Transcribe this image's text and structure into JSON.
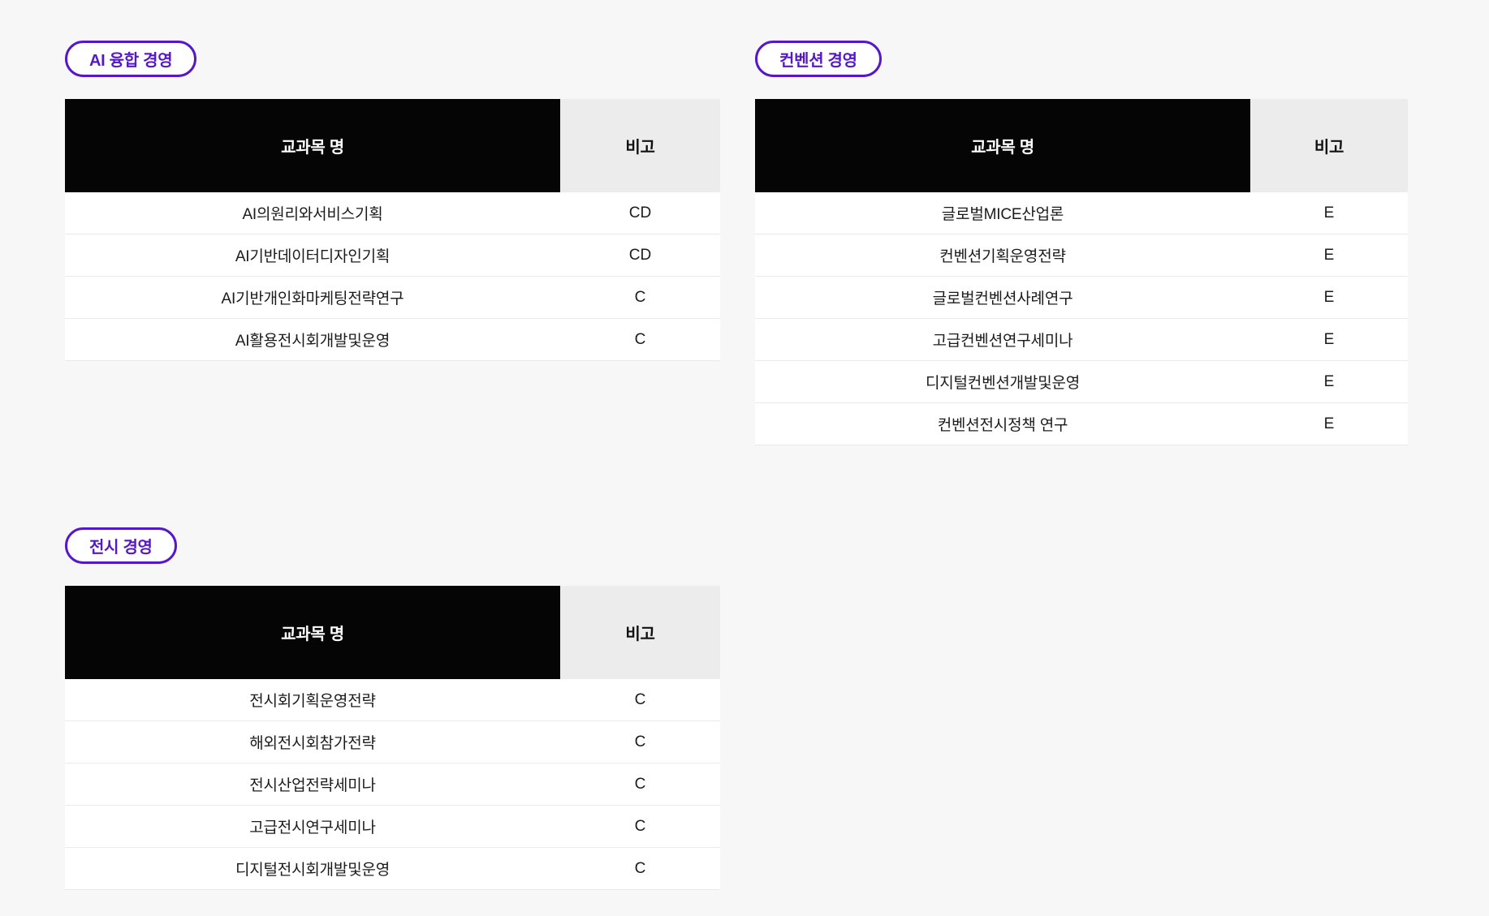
{
  "theme": {
    "accent": "#5617C9",
    "page_bg": "#F7F7F8",
    "header_bg": "#050505",
    "header_text": "#FFFFFF",
    "subheader_bg": "#ECECEC",
    "row_border": "#E9E9EB"
  },
  "columns": {
    "course": "교과목 명",
    "note": "비고"
  },
  "sections": [
    {
      "badge": "AI 융합 경영",
      "rows": [
        {
          "course": "AI의원리와서비스기획",
          "note": "CD"
        },
        {
          "course": "AI기반데이터디자인기획",
          "note": "CD"
        },
        {
          "course": "AI기반개인화마케팅전략연구",
          "note": "C"
        },
        {
          "course": "AI활용전시회개발및운영",
          "note": "C"
        }
      ]
    },
    {
      "badge": "컨벤션 경영",
      "rows": [
        {
          "course": "글로벌MICE산업론",
          "note": "E"
        },
        {
          "course": "컨벤션기획운영전략",
          "note": "E"
        },
        {
          "course": "글로벌컨벤션사례연구",
          "note": "E"
        },
        {
          "course": "고급컨벤션연구세미나",
          "note": "E"
        },
        {
          "course": "디지털컨벤션개발및운영",
          "note": "E"
        },
        {
          "course": "컨벤션전시정책 연구",
          "note": "E"
        }
      ]
    },
    {
      "badge": "전시 경영",
      "rows": [
        {
          "course": "전시회기획운영전략",
          "note": "C"
        },
        {
          "course": "해외전시회참가전략",
          "note": "C"
        },
        {
          "course": "전시산업전략세미나",
          "note": "C"
        },
        {
          "course": "고급전시연구세미나",
          "note": "C"
        },
        {
          "course": "디지털전시회개발및운영",
          "note": "C"
        }
      ]
    }
  ]
}
